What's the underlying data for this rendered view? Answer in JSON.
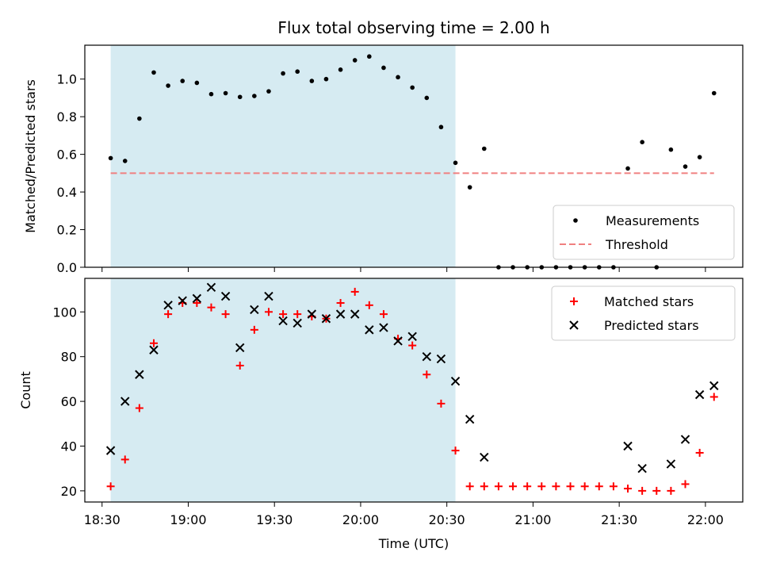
{
  "chart_data": [
    {
      "type": "scatter",
      "title": "Flux total observing time = 2.00 h",
      "ylabel": "Matched/Predicted stars",
      "ylim": [
        0,
        1.18
      ],
      "yticks": [
        "0.0",
        "0.2",
        "0.4",
        "0.6",
        "0.8",
        "1.0"
      ],
      "ytick_values": [
        0,
        0.2,
        0.4,
        0.6,
        0.8,
        1.0
      ],
      "xlim": [
        "18:24",
        "22:13"
      ],
      "shaded_interval": [
        "18:33",
        "20:33"
      ],
      "shade_color": "#add8e6",
      "legend_position": "lower right",
      "series": [
        {
          "name": "Measurements",
          "kind": "scatter",
          "color": "#000000",
          "marker": "dot",
          "x": [
            "18:33",
            "18:38",
            "18:43",
            "18:48",
            "18:53",
            "18:58",
            "19:03",
            "19:08",
            "19:13",
            "19:18",
            "19:23",
            "19:28",
            "19:33",
            "19:38",
            "19:43",
            "19:48",
            "19:53",
            "19:58",
            "20:03",
            "20:08",
            "20:13",
            "20:18",
            "20:23",
            "20:28",
            "20:33",
            "20:38",
            "20:43",
            "20:48",
            "20:53",
            "20:58",
            "21:03",
            "21:08",
            "21:13",
            "21:18",
            "21:23",
            "21:28",
            "21:33",
            "21:38",
            "21:43",
            "21:48",
            "21:53",
            "21:58",
            "22:03"
          ],
          "y": [
            0.58,
            0.565,
            0.79,
            1.035,
            0.965,
            0.99,
            0.98,
            0.92,
            0.925,
            0.905,
            0.91,
            0.935,
            1.03,
            1.04,
            0.99,
            1.0,
            1.05,
            1.1,
            1.12,
            1.06,
            1.01,
            0.955,
            0.9,
            0.745,
            0.555,
            0.425,
            0.63,
            0.0,
            0.0,
            0.0,
            0.0,
            0.0,
            0.0,
            0.0,
            0.0,
            0.0,
            0.525,
            0.665,
            0.0,
            0.625,
            0.535,
            0.585,
            0.925
          ]
        },
        {
          "name": "Threshold",
          "kind": "line",
          "color": "#f08080",
          "dash": "dashed",
          "x": [
            "18:33",
            "22:03"
          ],
          "y": [
            0.5,
            0.5
          ]
        }
      ]
    },
    {
      "type": "scatter",
      "xlabel": "Time (UTC)",
      "ylabel": "Count",
      "ylim": [
        15,
        115
      ],
      "yticks": [
        "20",
        "40",
        "60",
        "80",
        "100"
      ],
      "ytick_values": [
        20,
        40,
        60,
        80,
        100
      ],
      "xlim": [
        "18:24",
        "22:13"
      ],
      "xticks": [
        "18:30",
        "19:00",
        "19:30",
        "20:00",
        "20:30",
        "21:00",
        "21:30",
        "22:00"
      ],
      "xtick_values": [
        "18:30",
        "19:00",
        "19:30",
        "20:00",
        "20:30",
        "21:00",
        "21:30",
        "22:00"
      ],
      "shaded_interval": [
        "18:33",
        "20:33"
      ],
      "shade_color": "#add8e6",
      "legend_position": "upper right",
      "series": [
        {
          "name": "Matched stars",
          "kind": "scatter",
          "color": "#ff0000",
          "marker": "plus",
          "x": [
            "18:33",
            "18:38",
            "18:43",
            "18:48",
            "18:53",
            "18:58",
            "19:03",
            "19:08",
            "19:13",
            "19:18",
            "19:23",
            "19:28",
            "19:33",
            "19:38",
            "19:43",
            "19:48",
            "19:53",
            "19:58",
            "20:03",
            "20:08",
            "20:13",
            "20:18",
            "20:23",
            "20:28",
            "20:33",
            "20:38",
            "20:43",
            "20:48",
            "20:53",
            "20:58",
            "21:03",
            "21:08",
            "21:13",
            "21:18",
            "21:23",
            "21:28",
            "21:33",
            "21:38",
            "21:43",
            "21:48",
            "21:53",
            "21:58",
            "22:03"
          ],
          "y": [
            22,
            34,
            57,
            86,
            99,
            104,
            104,
            102,
            99,
            76,
            92,
            100,
            99,
            99,
            98,
            97,
            104,
            109,
            103,
            99,
            88,
            85,
            72,
            59,
            38,
            22,
            22,
            22,
            22,
            22,
            22,
            22,
            22,
            22,
            22,
            22,
            21,
            20,
            20,
            20,
            23,
            37,
            62
          ]
        },
        {
          "name": "Predicted stars",
          "kind": "scatter",
          "color": "#000000",
          "marker": "x",
          "x": [
            "18:33",
            "18:38",
            "18:43",
            "18:48",
            "18:53",
            "18:58",
            "19:03",
            "19:08",
            "19:13",
            "19:18",
            "19:23",
            "19:28",
            "19:33",
            "19:38",
            "19:43",
            "19:48",
            "19:53",
            "19:58",
            "20:03",
            "20:08",
            "20:13",
            "20:18",
            "20:23",
            "20:28",
            "20:33",
            "20:38",
            "20:43",
            "21:33",
            "21:38",
            "21:48",
            "21:53",
            "21:58",
            "22:03"
          ],
          "y": [
            38,
            60,
            72,
            83,
            103,
            105,
            106,
            111,
            107,
            84,
            101,
            107,
            96,
            95,
            99,
            97,
            99,
            99,
            92,
            93,
            87,
            89,
            80,
            79,
            69,
            52,
            35,
            40,
            30,
            32,
            43,
            63,
            67
          ]
        }
      ]
    }
  ]
}
